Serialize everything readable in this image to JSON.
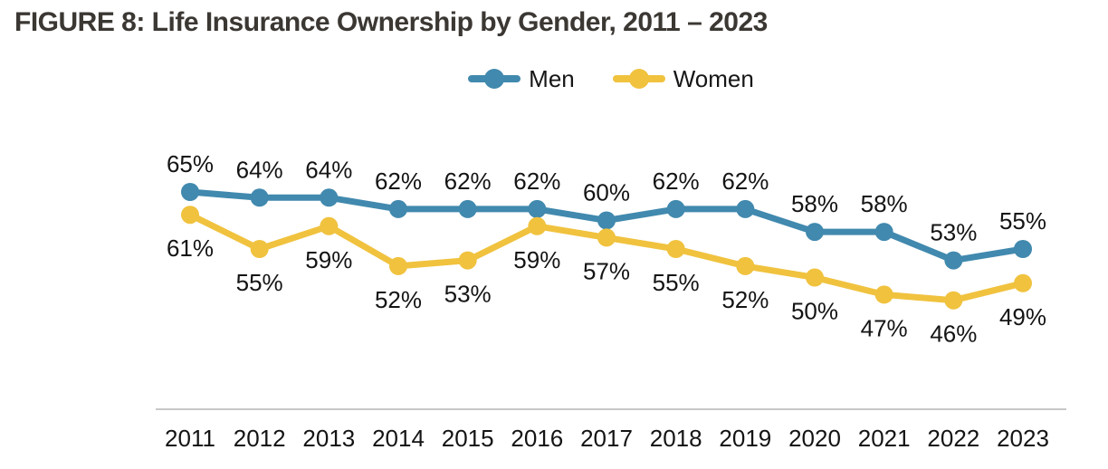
{
  "title": "FIGURE 8: Life Insurance Ownership by Gender, 2011 – 2023",
  "legend": {
    "items": [
      {
        "label": "Men",
        "color": "#4189ae"
      },
      {
        "label": "Women",
        "color": "#f0c23e"
      }
    ]
  },
  "chart_data": {
    "type": "line",
    "title": "FIGURE 8: Life Insurance Ownership by Gender, 2011 – 2023",
    "categories": [
      "2011",
      "2012",
      "2013",
      "2014",
      "2015",
      "2016",
      "2017",
      "2018",
      "2019",
      "2020",
      "2021",
      "2022",
      "2023"
    ],
    "series": [
      {
        "name": "Men",
        "color": "#4189ae",
        "values": [
          65,
          64,
          64,
          62,
          62,
          62,
          60,
          62,
          62,
          58,
          58,
          53,
          55
        ]
      },
      {
        "name": "Women",
        "color": "#f0c23e",
        "values": [
          61,
          55,
          59,
          52,
          53,
          59,
          57,
          55,
          52,
          50,
          47,
          46,
          49
        ]
      }
    ],
    "unit": "%",
    "data_labels": true,
    "ylim": [
      40,
      70
    ],
    "grid": false,
    "legend_position": "top-center",
    "xlabel": "",
    "ylabel": ""
  },
  "colors": {
    "title": "#3b3733",
    "labels": "#141414",
    "axis_line": "#c8c8c8",
    "background": "#ffffff"
  }
}
